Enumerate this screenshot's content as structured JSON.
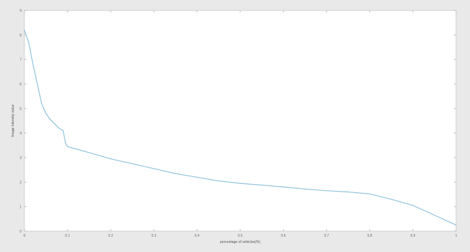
{
  "chart_data": {
    "type": "line",
    "title": "",
    "xlabel": "percentage of vehicles(%)",
    "ylabel": "Image intensity value",
    "xlim": [
      0,
      1
    ],
    "ylim": [
      0,
      9
    ],
    "x_ticks": [
      "0",
      "0.1",
      "0.2",
      "0.3",
      "0.4",
      "0.5",
      "0.6",
      "0.7",
      "0.8",
      "0.9",
      "1"
    ],
    "y_ticks": [
      "0",
      "1",
      "2",
      "3",
      "4",
      "5",
      "6",
      "7",
      "8",
      "9"
    ],
    "grid": false,
    "series": [
      {
        "color": "#8fc3dc",
        "x": [
          0,
          0.01,
          0.02,
          0.03,
          0.04,
          0.05,
          0.06,
          0.08,
          0.09,
          0.095,
          0.1,
          0.15,
          0.2,
          0.25,
          0.3,
          0.35,
          0.4,
          0.45,
          0.5,
          0.55,
          0.6,
          0.65,
          0.7,
          0.75,
          0.8,
          0.85,
          0.9,
          0.95,
          1.0
        ],
        "y": [
          8.2,
          7.7,
          6.8,
          6.0,
          5.2,
          4.8,
          4.55,
          4.2,
          4.1,
          3.6,
          3.45,
          3.2,
          2.95,
          2.75,
          2.55,
          2.35,
          2.2,
          2.05,
          1.95,
          1.88,
          1.8,
          1.72,
          1.65,
          1.6,
          1.52,
          1.3,
          1.05,
          0.65,
          0.25
        ]
      }
    ]
  }
}
